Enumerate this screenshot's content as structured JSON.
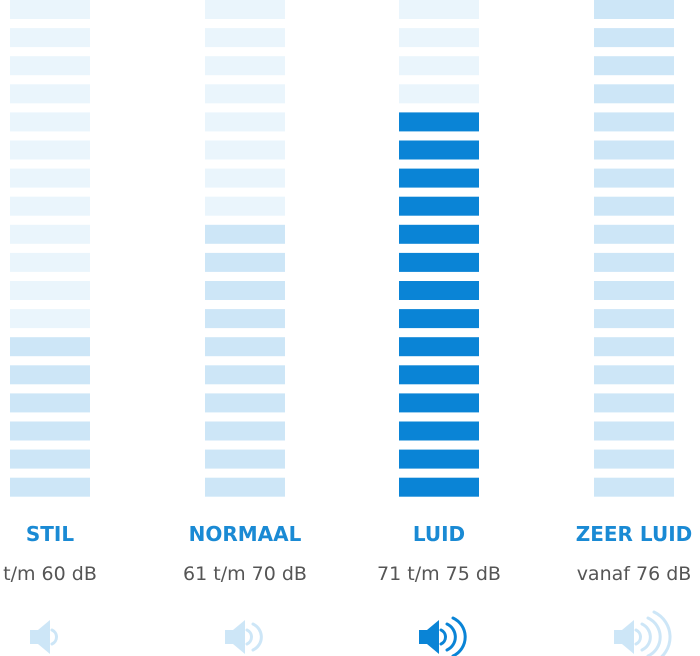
{
  "segments": 18,
  "columns": [
    {
      "label": "STIL",
      "range": "t/m 60 dB",
      "level": 6,
      "active": false
    },
    {
      "label": "NORMAAL",
      "range": "61 t/m 70 dB",
      "level": 10,
      "active": false
    },
    {
      "label": "LUID",
      "range": "71 t/m 75 dB",
      "level": 14,
      "active": true
    },
    {
      "label": "ZEER LUID",
      "range": "vanaf 76 dB",
      "level": 18,
      "active": false
    }
  ]
}
